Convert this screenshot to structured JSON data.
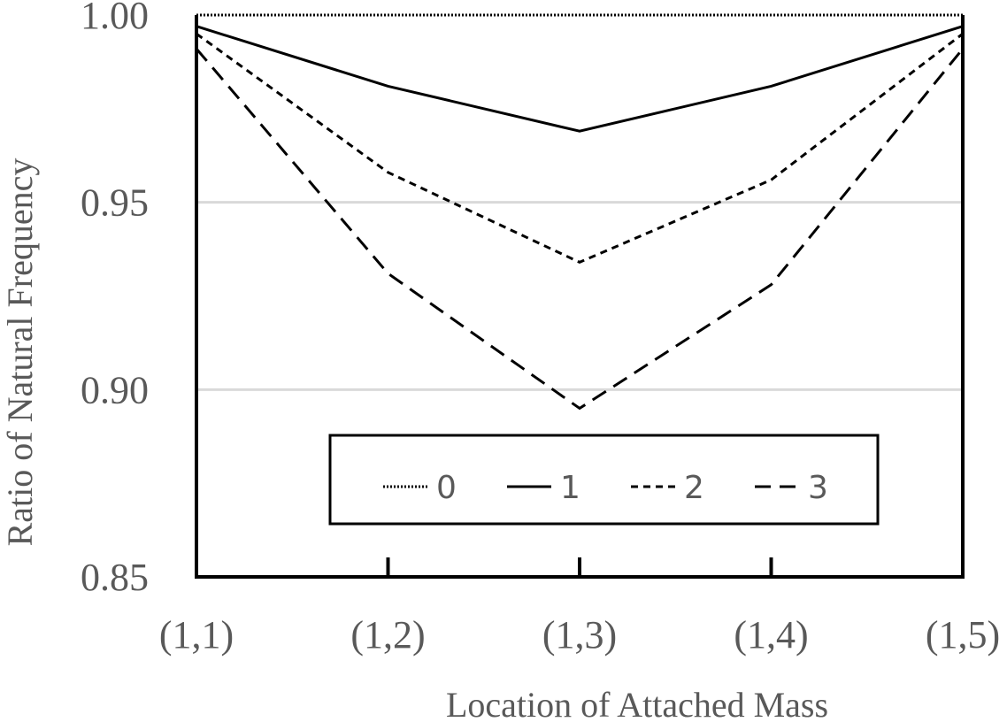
{
  "chart_data": {
    "type": "line",
    "title": "",
    "xlabel": "Location of Attached Mass",
    "ylabel": "Ratio of Natural Frequency",
    "categories": [
      "(1,1)",
      "(1,2)",
      "(1,3)",
      "(1,4)",
      "(1,5)"
    ],
    "ylim": [
      0.85,
      1.0
    ],
    "yticks": [
      "0.85",
      "0.90",
      "0.95",
      "1.00"
    ],
    "grid": "horizontal",
    "legend_placement": "bottom-center inside plot",
    "series": [
      {
        "name": "0",
        "style": "dotted",
        "color": "#000000",
        "values": [
          1.0,
          1.0,
          1.0,
          1.0,
          1.0
        ]
      },
      {
        "name": "1",
        "style": "solid",
        "color": "#000000",
        "values": [
          0.997,
          0.981,
          0.969,
          0.981,
          0.997
        ]
      },
      {
        "name": "2",
        "style": "short-dash",
        "color": "#000000",
        "values": [
          0.995,
          0.958,
          0.934,
          0.956,
          0.995
        ]
      },
      {
        "name": "3",
        "style": "long-dash",
        "color": "#000000",
        "values": [
          0.991,
          0.931,
          0.895,
          0.928,
          0.991
        ]
      }
    ]
  }
}
